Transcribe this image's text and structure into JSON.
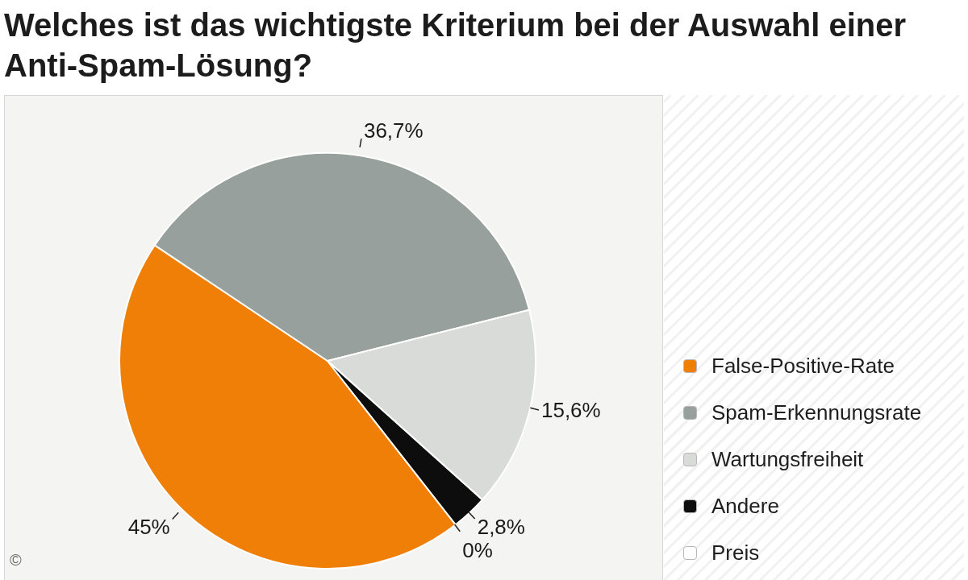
{
  "chart_data": {
    "type": "pie",
    "title": "Welches ist das wichtigste Kriterium bei der Auswahl einer Anti-Spam-Lösung?",
    "categories": [
      "False-Positive-Rate",
      "Spam-Erkennungsrate",
      "Wartungsfreiheit",
      "Andere",
      "Preis"
    ],
    "values": [
      45,
      36.7,
      15.6,
      2.8,
      0
    ],
    "colors": [
      "#ef7f07",
      "#97a09c",
      "#d9dbd8",
      "#0d0d0d",
      "#ffffff"
    ],
    "value_labels": [
      "45%",
      "36,7%",
      "15,6%",
      "2,8%",
      "0%"
    ],
    "legend": "right",
    "annotations": [
      "©"
    ]
  }
}
